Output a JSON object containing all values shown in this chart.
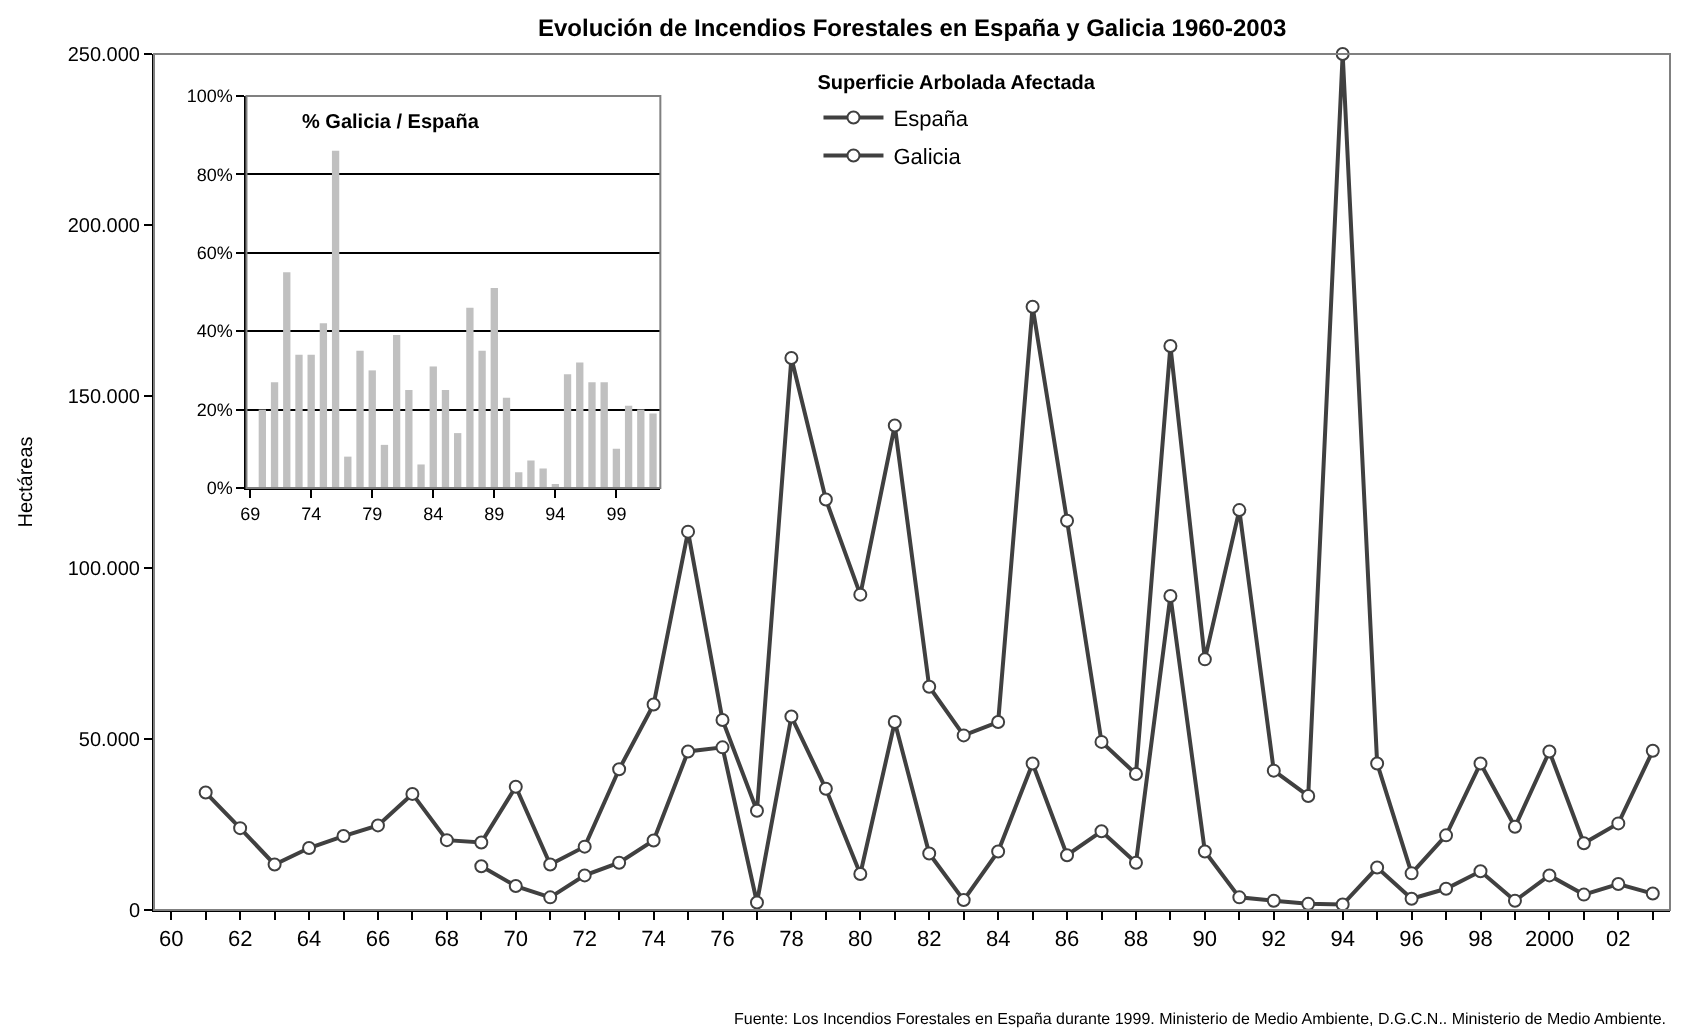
{
  "chart_data": [
    {
      "type": "line",
      "title": "Evolución de Incendios Forestales en España y Galicia 1960-2003",
      "ylabel": "Hectáreas",
      "legend_title": "Superficie Arbolada Afectada",
      "x": [
        1961,
        1962,
        1963,
        1964,
        1965,
        1966,
        1967,
        1968,
        1969,
        1970,
        1971,
        1972,
        1973,
        1974,
        1975,
        1976,
        1977,
        1978,
        1979,
        1980,
        1981,
        1982,
        1983,
        1984,
        1985,
        1986,
        1987,
        1988,
        1989,
        1990,
        1991,
        1992,
        1993,
        1994,
        1995,
        1996,
        1997,
        1998,
        1999,
        2000,
        2001,
        2002,
        2003
      ],
      "series": [
        {
          "name": "España",
          "color": "#404040",
          "values": [
            34300,
            23900,
            13300,
            18100,
            21600,
            24700,
            33900,
            20400,
            19700,
            36000,
            13300,
            18500,
            41100,
            60000,
            110500,
            55500,
            29000,
            161200,
            119900,
            92100,
            141500,
            65200,
            51000,
            54900,
            176200,
            113700,
            49100,
            39700,
            164700,
            73200,
            116800,
            40700,
            33300,
            250000,
            42800,
            10700,
            21800,
            42800,
            24300,
            46300,
            19500,
            25300,
            46500
          ]
        },
        {
          "name": "Galicia",
          "color": "#404040",
          "values": [
            null,
            null,
            null,
            null,
            null,
            null,
            null,
            null,
            12800,
            7000,
            3700,
            10100,
            13800,
            20300,
            46300,
            47500,
            2200,
            56500,
            35400,
            10500,
            54900,
            16500,
            2900,
            17100,
            42800,
            16000,
            23000,
            13800,
            91700,
            17100,
            3700,
            2700,
            1800,
            1600,
            12400,
            3300,
            6200,
            11300,
            2700,
            10100,
            4500,
            7600,
            4800
          ]
        }
      ],
      "xlim": [
        1959.5,
        2003.5
      ],
      "xticks": [
        {
          "value": 1960,
          "label": "60"
        },
        {
          "value": 1961,
          "label": null
        },
        {
          "value": 1962,
          "label": "62"
        },
        {
          "value": 1963,
          "label": null
        },
        {
          "value": 1964,
          "label": "64"
        },
        {
          "value": 1965,
          "label": null
        },
        {
          "value": 1966,
          "label": "66"
        },
        {
          "value": 1967,
          "label": null
        },
        {
          "value": 1968,
          "label": "68"
        },
        {
          "value": 1969,
          "label": null
        },
        {
          "value": 1970,
          "label": "70"
        },
        {
          "value": 1971,
          "label": null
        },
        {
          "value": 1972,
          "label": "72"
        },
        {
          "value": 1973,
          "label": null
        },
        {
          "value": 1974,
          "label": "74"
        },
        {
          "value": 1975,
          "label": null
        },
        {
          "value": 1976,
          "label": "76"
        },
        {
          "value": 1977,
          "label": null
        },
        {
          "value": 1978,
          "label": "78"
        },
        {
          "value": 1979,
          "label": null
        },
        {
          "value": 1980,
          "label": "80"
        },
        {
          "value": 1981,
          "label": null
        },
        {
          "value": 1982,
          "label": "82"
        },
        {
          "value": 1983,
          "label": null
        },
        {
          "value": 1984,
          "label": "84"
        },
        {
          "value": 1985,
          "label": null
        },
        {
          "value": 1986,
          "label": "86"
        },
        {
          "value": 1987,
          "label": null
        },
        {
          "value": 1988,
          "label": "88"
        },
        {
          "value": 1989,
          "label": null
        },
        {
          "value": 1990,
          "label": "90"
        },
        {
          "value": 1991,
          "label": null
        },
        {
          "value": 1992,
          "label": "92"
        },
        {
          "value": 1993,
          "label": null
        },
        {
          "value": 1994,
          "label": "94"
        },
        {
          "value": 1995,
          "label": null
        },
        {
          "value": 1996,
          "label": "96"
        },
        {
          "value": 1997,
          "label": null
        },
        {
          "value": 1998,
          "label": "98"
        },
        {
          "value": 1999,
          "label": null
        },
        {
          "value": 2000,
          "label": "2000"
        },
        {
          "value": 2001,
          "label": null
        },
        {
          "value": 2002,
          "label": "02"
        },
        {
          "value": 2003,
          "label": null
        }
      ],
      "ylim": [
        0,
        250000
      ],
      "yticks": [
        {
          "value": 0,
          "label": "0"
        },
        {
          "value": 50000,
          "label": "50.000"
        },
        {
          "value": 100000,
          "label": "100.000"
        },
        {
          "value": 150000,
          "label": "150.000"
        },
        {
          "value": 200000,
          "label": "200.000"
        },
        {
          "value": 250000,
          "label": "250.000"
        }
      ],
      "marker": "circle",
      "line_style": "solid",
      "grid": false,
      "legend": "top",
      "annotations": [
        "Fuente: Los Incendios Forestales en España durante 1999. Ministerio de Medio Ambiente, D.G.C.N.. Ministerio de Medio Ambiente."
      ]
    },
    {
      "type": "bar",
      "title": "% Galicia / España",
      "x": [
        1970,
        1971,
        1972,
        1973,
        1974,
        1975,
        1976,
        1977,
        1978,
        1979,
        1980,
        1981,
        1982,
        1983,
        1984,
        1985,
        1986,
        1987,
        1988,
        1989,
        1990,
        1991,
        1992,
        1993,
        1994,
        1995,
        1996,
        1997,
        1998,
        1999,
        2000,
        2001,
        2002
      ],
      "values": [
        20,
        27,
        55,
        34,
        34,
        42,
        86,
        8,
        35,
        30,
        11,
        39,
        25,
        6,
        31,
        25,
        14,
        46,
        35,
        51,
        23,
        4,
        7,
        5,
        1,
        29,
        32,
        27,
        27,
        10,
        21,
        20,
        19
      ],
      "color": "#c0c0c0",
      "xlim": [
        1968.7,
        2002.6
      ],
      "xticks": [
        {
          "value": 1969,
          "label": "69"
        },
        {
          "value": 1974,
          "label": "74"
        },
        {
          "value": 1979,
          "label": "79"
        },
        {
          "value": 1984,
          "label": "84"
        },
        {
          "value": 1989,
          "label": "89"
        },
        {
          "value": 1994,
          "label": "94"
        },
        {
          "value": 1999,
          "label": "99"
        }
      ],
      "ylim": [
        0,
        100
      ],
      "yticks": [
        {
          "value": 0,
          "label": "0%"
        },
        {
          "value": 20,
          "label": "20%"
        },
        {
          "value": 40,
          "label": "40%"
        },
        {
          "value": 60,
          "label": "60%"
        },
        {
          "value": 80,
          "label": "80%"
        },
        {
          "value": 100,
          "label": "100%"
        }
      ],
      "grid": "y",
      "legend": false
    }
  ]
}
